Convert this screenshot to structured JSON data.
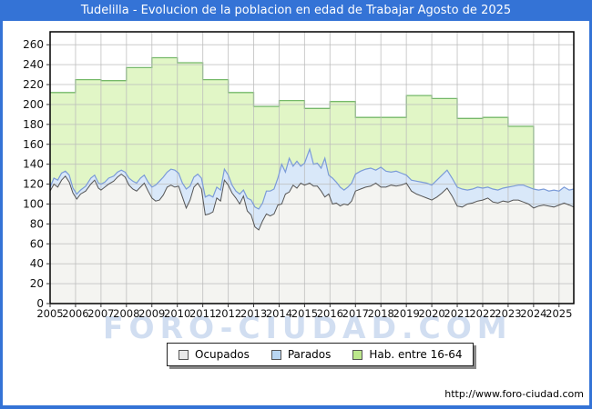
{
  "window": {
    "title": "Tudelilla - Evolucion de la poblacion en edad de Trabajar Agosto de 2025"
  },
  "watermark": "FORO-CIUDAD.COM",
  "footer": {
    "url": "http://www.foro-ciudad.com"
  },
  "colors": {
    "frame_blue": "#3473d6",
    "grid": "#bbbbbb",
    "plot_border": "#000000",
    "ocupados_fill": "#f4f4f1",
    "ocupados_line": "#555555",
    "parados_fill": "#d9e8f9",
    "parados_line": "#7b9bd8",
    "hab_fill": "#e1f6c6",
    "hab_line": "#76b96a",
    "tick_text": "#111111"
  },
  "legend": {
    "items": [
      {
        "label": "Ocupados",
        "swatch": "#e9e9e9"
      },
      {
        "label": "Parados",
        "swatch": "#b9d6f2"
      },
      {
        "label": "Hab. entre 16-64",
        "swatch": "#bce78c"
      }
    ]
  },
  "chart_data": {
    "type": "area",
    "title": "Tudelilla - Evolucion de la poblacion en edad de Trabajar Agosto de 2025",
    "xlabel": "",
    "ylabel": "",
    "x_axis": {
      "range": [
        2005,
        2025.58
      ],
      "ticks": [
        2005,
        2006,
        2007,
        2008,
        2009,
        2010,
        2011,
        2012,
        2013,
        2014,
        2015,
        2016,
        2017,
        2018,
        2019,
        2020,
        2021,
        2022,
        2023,
        2024,
        2025
      ]
    },
    "y_axis": {
      "range": [
        0,
        273
      ],
      "ticks": [
        0,
        20,
        40,
        60,
        80,
        100,
        120,
        140,
        160,
        180,
        200,
        220,
        240,
        260
      ],
      "grid": true
    },
    "legend_position": "bottom-center",
    "note": "Monthly series estimated from pixels; Parados is stacked on top of Ocupados; Hab. entre 16-64 is a yearly step series ending at 2024.",
    "x": [
      2005.0,
      2005.15,
      2005.3,
      2005.45,
      2005.6,
      2005.75,
      2005.9,
      2006.05,
      2006.2,
      2006.4,
      2006.6,
      2006.75,
      2006.9,
      2007.0,
      2007.15,
      2007.3,
      2007.5,
      2007.65,
      2007.8,
      2007.95,
      2008.1,
      2008.25,
      2008.4,
      2008.55,
      2008.7,
      2008.85,
      2009.0,
      2009.15,
      2009.3,
      2009.45,
      2009.6,
      2009.75,
      2009.9,
      2010.05,
      2010.2,
      2010.35,
      2010.5,
      2010.65,
      2010.8,
      2010.95,
      2011.1,
      2011.25,
      2011.4,
      2011.55,
      2011.7,
      2011.85,
      2012.0,
      2012.15,
      2012.3,
      2012.45,
      2012.6,
      2012.75,
      2012.9,
      2013.05,
      2013.2,
      2013.35,
      2013.5,
      2013.65,
      2013.8,
      2013.95,
      2014.1,
      2014.25,
      2014.4,
      2014.55,
      2014.7,
      2014.85,
      2015.0,
      2015.2,
      2015.35,
      2015.5,
      2015.65,
      2015.8,
      2015.95,
      2016.1,
      2016.25,
      2016.4,
      2016.55,
      2016.7,
      2016.85,
      2017.0,
      2017.2,
      2017.4,
      2017.6,
      2017.8,
      2018.0,
      2018.2,
      2018.4,
      2018.6,
      2018.8,
      2019.0,
      2019.2,
      2019.4,
      2019.6,
      2019.8,
      2020.0,
      2020.2,
      2020.4,
      2020.6,
      2020.8,
      2021.0,
      2021.2,
      2021.4,
      2021.6,
      2021.8,
      2022.0,
      2022.2,
      2022.4,
      2022.6,
      2022.8,
      2023.0,
      2023.2,
      2023.4,
      2023.6,
      2023.8,
      2024.0,
      2024.2,
      2024.4,
      2024.6,
      2024.8,
      2025.0,
      2025.2,
      2025.4,
      2025.58
    ],
    "series": [
      {
        "name": "Ocupados",
        "kind": "area",
        "values": [
          113,
          120,
          117,
          124,
          128,
          122,
          111,
          105,
          110,
          113,
          120,
          124,
          116,
          114,
          117,
          120,
          123,
          127,
          130,
          127,
          119,
          115,
          113,
          117,
          121,
          113,
          106,
          103,
          104,
          109,
          117,
          119,
          117,
          118,
          107,
          96,
          104,
          117,
          121,
          115,
          89,
          90,
          92,
          106,
          103,
          124,
          119,
          111,
          106,
          100,
          108,
          93,
          89,
          77,
          74,
          83,
          90,
          88,
          90,
          99,
          100,
          110,
          112,
          119,
          116,
          121,
          119,
          121,
          118,
          118,
          113,
          107,
          110,
          100,
          101,
          98,
          100,
          99,
          103,
          113,
          115,
          117,
          118,
          121,
          117,
          117,
          119,
          118,
          119,
          121,
          113,
          110,
          108,
          106,
          104,
          107,
          111,
          116,
          108,
          98,
          97,
          100,
          101,
          103,
          104,
          106,
          102,
          101,
          103,
          102,
          104,
          104,
          102,
          100,
          96,
          98,
          99,
          98,
          97,
          99,
          101,
          99,
          97
        ]
      },
      {
        "name": "Parados",
        "kind": "area-stacked-on-Ocupados",
        "values": [
          4,
          6,
          7,
          7,
          5,
          7,
          5,
          5,
          4,
          5,
          6,
          5,
          5,
          6,
          5,
          6,
          5,
          5,
          4,
          5,
          7,
          8,
          8,
          9,
          8,
          9,
          11,
          16,
          19,
          18,
          15,
          16,
          17,
          13,
          14,
          19,
          14,
          10,
          9,
          11,
          18,
          19,
          15,
          11,
          11,
          11,
          10,
          8,
          7,
          10,
          6,
          13,
          15,
          20,
          21,
          18,
          23,
          25,
          25,
          27,
          40,
          22,
          34,
          19,
          27,
          17,
          22,
          34,
          22,
          23,
          23,
          39,
          19,
          26,
          21,
          19,
          14,
          18,
          18,
          17,
          18,
          18,
          18,
          13,
          20,
          16,
          13,
          15,
          12,
          8,
          11,
          13,
          14,
          15,
          15,
          17,
          18,
          18,
          18,
          19,
          18,
          14,
          14,
          14,
          12,
          11,
          13,
          13,
          13,
          15,
          14,
          15,
          17,
          17,
          19,
          16,
          16,
          15,
          17,
          14,
          16,
          15,
          18
        ]
      },
      {
        "name": "Hab. entre 16-64",
        "kind": "step-area",
        "years": [
          2005,
          2006,
          2007,
          2008,
          2009,
          2010,
          2011,
          2012,
          2013,
          2014,
          2015,
          2016,
          2017,
          2018,
          2019,
          2020,
          2021,
          2022,
          2023
        ],
        "values": [
          212,
          225,
          224,
          237,
          247,
          242,
          225,
          212,
          198,
          204,
          196,
          203,
          187,
          187,
          209,
          206,
          186,
          187,
          178
        ],
        "ends_at": 2024
      }
    ]
  }
}
